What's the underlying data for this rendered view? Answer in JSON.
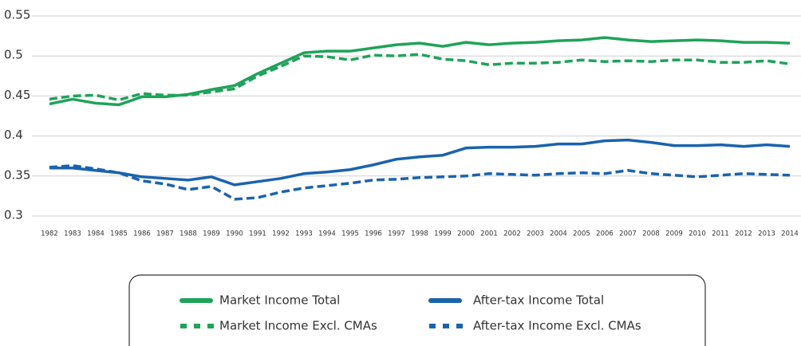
{
  "chart_data": {
    "type": "line",
    "categories": [
      "1982",
      "1983",
      "1984",
      "1985",
      "1986",
      "1987",
      "1988",
      "1989",
      "1990",
      "1991",
      "1992",
      "1993",
      "1994",
      "1995",
      "1996",
      "1997",
      "1998",
      "1999",
      "2000",
      "2001",
      "2002",
      "2003",
      "2004",
      "2005",
      "2006",
      "2007",
      "2008",
      "2009",
      "2010",
      "2011",
      "2012",
      "2013",
      "2014"
    ],
    "series": [
      {
        "name": "Market Income Total",
        "color": "#1fa35a",
        "line_style": "solid",
        "values": [
          0.44,
          0.446,
          0.441,
          0.439,
          0.449,
          0.449,
          0.452,
          0.458,
          0.463,
          0.478,
          0.491,
          0.504,
          0.506,
          0.506,
          0.51,
          0.514,
          0.516,
          0.512,
          0.517,
          0.514,
          0.516,
          0.517,
          0.519,
          0.52,
          0.523,
          0.52,
          0.518,
          0.519,
          0.52,
          0.519,
          0.517,
          0.517,
          0.516
        ]
      },
      {
        "name": "After-tax Income Total",
        "color": "#1a63ad",
        "line_style": "solid",
        "values": [
          0.36,
          0.36,
          0.357,
          0.354,
          0.349,
          0.347,
          0.345,
          0.349,
          0.339,
          0.343,
          0.347,
          0.353,
          0.355,
          0.358,
          0.364,
          0.371,
          0.374,
          0.376,
          0.385,
          0.386,
          0.386,
          0.387,
          0.39,
          0.39,
          0.394,
          0.395,
          0.392,
          0.388,
          0.388,
          0.389,
          0.387,
          0.389,
          0.387
        ]
      },
      {
        "name": "Market Income Excl. CMAs",
        "color": "#1fa35a",
        "line_style": "dashed",
        "values": [
          0.446,
          0.45,
          0.451,
          0.445,
          0.453,
          0.451,
          0.451,
          0.455,
          0.459,
          0.475,
          0.487,
          0.5,
          0.499,
          0.495,
          0.501,
          0.5,
          0.502,
          0.496,
          0.494,
          0.489,
          0.491,
          0.491,
          0.492,
          0.495,
          0.493,
          0.494,
          0.493,
          0.495,
          0.495,
          0.492,
          0.492,
          0.494,
          0.49
        ]
      },
      {
        "name": "After-tax Income Excl. CMAs",
        "color": "#1a63ad",
        "line_style": "dashed",
        "values": [
          0.361,
          0.363,
          0.359,
          0.354,
          0.344,
          0.34,
          0.333,
          0.337,
          0.321,
          0.323,
          0.33,
          0.335,
          0.338,
          0.341,
          0.345,
          0.346,
          0.348,
          0.349,
          0.35,
          0.353,
          0.352,
          0.351,
          0.353,
          0.354,
          0.353,
          0.357,
          0.353,
          0.351,
          0.349,
          0.351,
          0.353,
          0.352,
          0.351
        ]
      }
    ],
    "ylim": [
      0.3,
      0.55
    ],
    "yticks": [
      0.3,
      0.35,
      0.4,
      0.45,
      0.5,
      0.55
    ],
    "grid": true,
    "legend": "bottom"
  }
}
